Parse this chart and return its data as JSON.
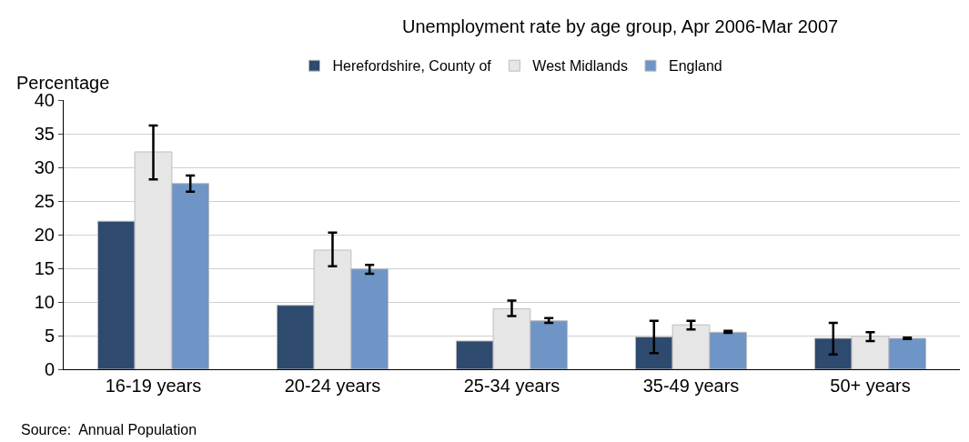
{
  "chart_data": {
    "type": "bar",
    "title": "Unemployment rate by age group, Apr 2006-Mar 2007",
    "ylabel": "Percentage",
    "categories": [
      "16-19 years",
      "20-24 years",
      "25-34 years",
      "35-49 years",
      "50+ years"
    ],
    "series": [
      {
        "name": "Herefordshire, County of",
        "color": "#2e4a6e",
        "values": [
          22.0,
          9.5,
          4.2,
          4.8,
          4.6
        ],
        "errors": [
          null,
          null,
          null,
          [
            2.4,
            7.2
          ],
          [
            2.2,
            6.9
          ]
        ]
      },
      {
        "name": "West Midlands",
        "color": "#e6e6e6",
        "values": [
          32.3,
          17.7,
          9.0,
          6.6,
          4.9
        ],
        "errors": [
          [
            28.2,
            36.2
          ],
          [
            15.3,
            20.3
          ],
          [
            7.9,
            10.2
          ],
          [
            5.9,
            7.2
          ],
          [
            4.2,
            5.5
          ]
        ]
      },
      {
        "name": "England",
        "color": "#6f94c6",
        "values": [
          27.6,
          14.9,
          7.2,
          5.5,
          4.6
        ],
        "errors": [
          [
            26.4,
            28.8
          ],
          [
            14.2,
            15.5
          ],
          [
            6.9,
            7.6
          ],
          [
            5.4,
            5.7
          ],
          [
            4.5,
            4.7
          ]
        ]
      }
    ],
    "ylim": [
      0,
      40
    ],
    "yticks": [
      0,
      5,
      10,
      15,
      20,
      25,
      30,
      35,
      40
    ],
    "grid": "y",
    "legend": "top",
    "annotations": [
      "Source:  Annual Population"
    ]
  }
}
